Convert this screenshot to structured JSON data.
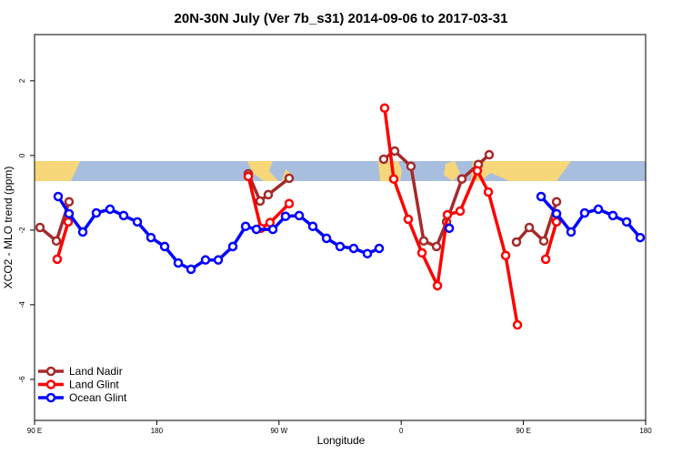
{
  "chart_data": {
    "type": "line",
    "title": "20N-30N July (Ver 7b_s31)   2014-09-06 to 2017-03-31",
    "x_label": "Longitude",
    "y_label": "XCO2 - MLO trend (ppm)",
    "xlim": [
      90,
      540
    ],
    "xticks": [
      {
        "value": 90,
        "label": "90 E"
      },
      {
        "value": 180,
        "label": "180"
      },
      {
        "value": 270,
        "label": "90 W"
      },
      {
        "value": 360,
        "label": "0"
      },
      {
        "value": 450,
        "label": "90 E"
      },
      {
        "value": 540,
        "label": "180"
      }
    ],
    "ylim": [
      -7.1,
      3.24
    ],
    "yticks": [
      2,
      0,
      -2,
      -4,
      -6
    ],
    "legend": "bottom-left",
    "series": [
      {
        "name": "Land Nadir",
        "color": "#a52a2a",
        "x": [
          94.0,
          106.1,
          115.4,
          null,
          247.4,
          256.1,
          262.1,
          277.5,
          null,
          347.1,
          355.2,
          367.2,
          376.6,
          386.0,
          393.4,
          404.7,
          416.8,
          424.8,
          null,
          444.9,
          454.3,
          465.0,
          474.4
        ],
        "values": [
          -1.93,
          -2.29,
          -1.24,
          null,
          -0.49,
          -1.22,
          -1.05,
          -0.61,
          null,
          -0.1,
          0.12,
          -0.29,
          -2.29,
          -2.44,
          -1.78,
          -0.63,
          -0.24,
          0.02,
          null,
          -2.32,
          -1.93,
          -2.29,
          -1.24
        ]
      },
      {
        "name": "Land Glint",
        "color": "#ff0000",
        "x": [
          106.7,
          114.8,
          null,
          247.4,
          256.7,
          263.4,
          277.5,
          null,
          347.8,
          354.5,
          365.2,
          375.3,
          386.7,
          394.0,
          403.4,
          416.1,
          424.2,
          436.9,
          445.6,
          null,
          466.4,
          474.4
        ],
        "values": [
          -2.78,
          -1.78,
          null,
          -0.56,
          -1.95,
          -1.8,
          -1.29,
          null,
          1.27,
          -0.63,
          -1.71,
          -2.61,
          -3.49,
          -1.59,
          -1.49,
          -0.41,
          -0.98,
          -2.68,
          -4.54,
          null,
          -2.78,
          -1.78
        ]
      },
      {
        "name": "Ocean Glint",
        "color": "#0000ff",
        "x": [
          107.4,
          115.4,
          125.5,
          135.5,
          145.6,
          155.6,
          165.7,
          175.7,
          185.8,
          195.8,
          205.2,
          215.9,
          225.3,
          236.0,
          245.4,
          253.4,
          265.5,
          274.8,
          284.9,
          294.9,
          305.0,
          315.0,
          325.0,
          335.1,
          343.8,
          null,
          395.4,
          null,
          463.0,
          474.4,
          485.1,
          495.1,
          505.2,
          515.9,
          526.0,
          536.0
        ],
        "values": [
          -1.1,
          -1.56,
          -2.05,
          -1.54,
          -1.44,
          -1.61,
          -1.78,
          -2.2,
          -2.44,
          -2.88,
          -3.05,
          -2.8,
          -2.8,
          -2.44,
          -1.9,
          -1.98,
          -1.98,
          -1.63,
          -1.61,
          -1.9,
          -2.22,
          -2.44,
          -2.49,
          -2.63,
          -2.49,
          null,
          -1.95,
          null,
          -1.1,
          -1.56,
          -2.05,
          -1.54,
          -1.44,
          -1.61,
          -1.78,
          -2.2
        ]
      }
    ]
  }
}
